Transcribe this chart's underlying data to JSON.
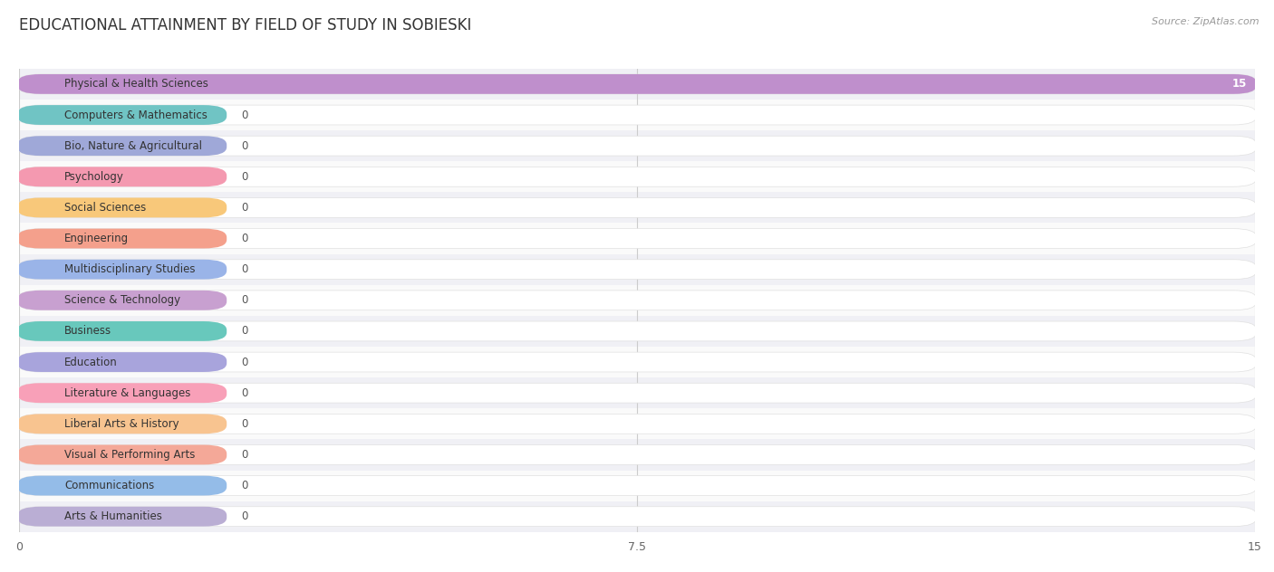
{
  "title": "EDUCATIONAL ATTAINMENT BY FIELD OF STUDY IN SOBIESKI",
  "source": "Source: ZipAtlas.com",
  "categories": [
    "Physical & Health Sciences",
    "Computers & Mathematics",
    "Bio, Nature & Agricultural",
    "Psychology",
    "Social Sciences",
    "Engineering",
    "Multidisciplinary Studies",
    "Science & Technology",
    "Business",
    "Education",
    "Literature & Languages",
    "Liberal Arts & History",
    "Visual & Performing Arts",
    "Communications",
    "Arts & Humanities"
  ],
  "values": [
    15,
    0,
    0,
    0,
    0,
    0,
    0,
    0,
    0,
    0,
    0,
    0,
    0,
    0,
    0
  ],
  "bar_colors": [
    "#bf8fcc",
    "#70c4c4",
    "#9fa8d8",
    "#f499b0",
    "#f8c87a",
    "#f4a08c",
    "#9ab4e8",
    "#c8a0d0",
    "#68c8bc",
    "#a8a4dc",
    "#f8a0b8",
    "#f8c490",
    "#f4a898",
    "#94bce8",
    "#baaed4"
  ],
  "xlim": [
    0,
    15
  ],
  "xticks": [
    0,
    7.5,
    15
  ],
  "bg_color": "#ffffff",
  "grid_color": "#cccccc",
  "row_even_color": "#f0f0f5",
  "row_odd_color": "#fafafa",
  "title_fontsize": 12,
  "label_fontsize": 8.5,
  "value_fontsize": 8.5,
  "tick_fontsize": 9
}
